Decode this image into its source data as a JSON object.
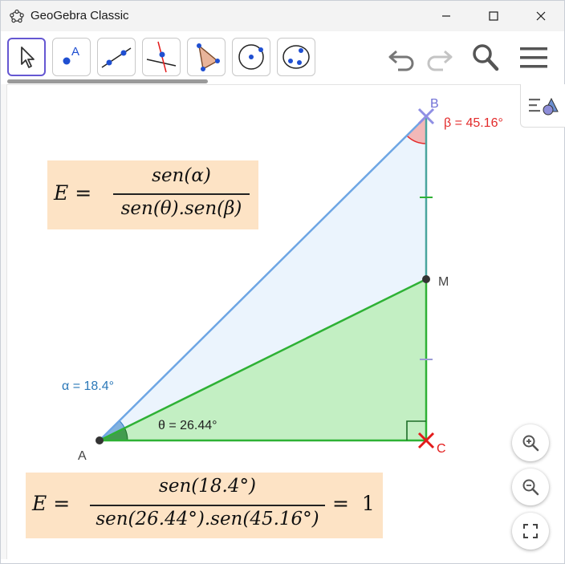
{
  "window": {
    "title": "GeoGebra Classic",
    "controls": {
      "minimize": "minimize",
      "maximize": "maximize",
      "close": "close"
    }
  },
  "toolbar": {
    "tools": [
      {
        "name": "move-tool",
        "icon": "cursor-icon",
        "label": ""
      },
      {
        "name": "point-tool",
        "icon": "point-icon",
        "label": "A"
      },
      {
        "name": "line-tool",
        "icon": "line-icon",
        "label": ""
      },
      {
        "name": "perpendicular-line-tool",
        "icon": "perpendicular-icon",
        "label": ""
      },
      {
        "name": "polygon-tool",
        "icon": "polygon-icon",
        "label": ""
      },
      {
        "name": "circle-tool",
        "icon": "circle-icon",
        "label": ""
      },
      {
        "name": "conic-tool",
        "icon": "conic-icon",
        "label": ""
      }
    ],
    "actions": [
      "undo-icon",
      "redo-icon",
      "search-icon",
      "menu-icon"
    ]
  },
  "graphics": {
    "points": {
      "A": "A",
      "B": "B",
      "C": "C",
      "M": "M"
    },
    "angle_labels": {
      "alpha": "α = 18.4°",
      "theta": "θ = 26.44°",
      "beta": "β = 45.16°"
    },
    "formula1": {
      "lhs": "E =",
      "numerator": "sen(α)",
      "denominator": "sen(θ).sen(β)"
    },
    "formula2": {
      "lhs": "E =",
      "numerator": "sen(18.4°)",
      "denominator": "sen(26.44°).sen(45.16°)",
      "rhs": "=  1"
    }
  },
  "colors": {
    "accent": "#6557d2",
    "triangle_blue": "#6ea6e4",
    "triangle_green": "#2eb135",
    "green_fill": "#c3efc3",
    "blue_fill": "#ebf4fd",
    "beta_label": "#e32b2b",
    "alpha_label": "#2b78b8",
    "formula_bg": "#fde3c5"
  }
}
